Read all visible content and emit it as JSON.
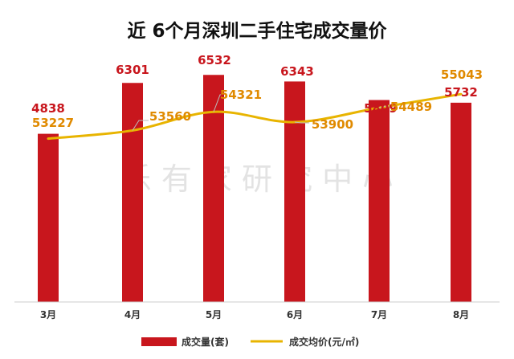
{
  "chart_data": {
    "type": "bar",
    "title": "近 6个月深圳二手住宅成交量价",
    "categories": [
      "3月",
      "4月",
      "5月",
      "6月",
      "7月",
      "8月"
    ],
    "series": [
      {
        "name": "成交量(套)",
        "kind": "bar",
        "axis": "left",
        "color": "#c8161d",
        "values": [
          4838,
          6301,
          6532,
          6343,
          5809,
          5732
        ]
      },
      {
        "name": "成交均价(元/㎡)",
        "kind": "line",
        "axis": "right",
        "color": "#e8b400",
        "values": [
          53227,
          53560,
          54321,
          53900,
          54489,
          55043
        ]
      }
    ],
    "ylim_left": [
      0,
      7000
    ],
    "ylim_right": [
      46000,
      56000
    ],
    "grid": false,
    "legend_position": "bottom",
    "label_colors": {
      "bar": "#c8161d",
      "line": "#e08a00"
    },
    "watermark": "乐 有 家 研 究 中 心"
  }
}
